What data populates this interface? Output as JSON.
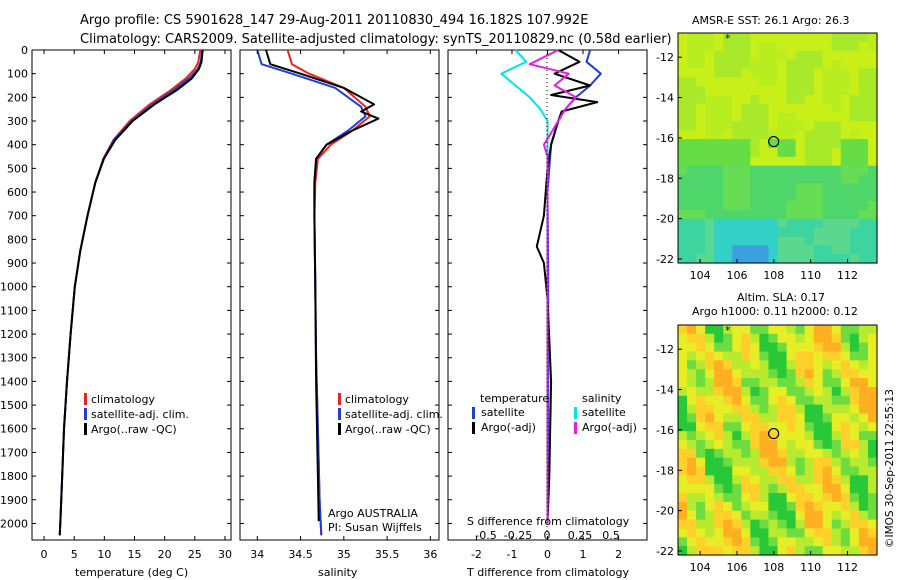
{
  "title": {
    "line1": "Argo profile: CS 5901628_147 29-Aug-2011 20110830_494 16.182S 107.992E",
    "line2": "Climatology: CARS2009. Satellite-adjusted climatology: synTS_20110829.nc (0.58d earlier)"
  },
  "colors": {
    "climatology": "#e8261b",
    "satellite": "#1f3fd6",
    "argo": "#000000",
    "sat_salinity": "#00e5e5",
    "argo_salinity": "#e51ee5"
  },
  "depth_ticks": [
    "0",
    "100",
    "200",
    "300",
    "400",
    "500",
    "600",
    "700",
    "800",
    "900",
    "1000",
    "1100",
    "1200",
    "1300",
    "1400",
    "1500",
    "1600",
    "1700",
    "1800",
    "1900",
    "2000"
  ],
  "panels": {
    "temperature": {
      "xlabel": "temperature (deg C)",
      "xticks": [
        "0",
        "5",
        "10",
        "15",
        "20",
        "25",
        "30"
      ],
      "legend": [
        "climatology",
        "satellite-adj. clim.",
        "Argo(..raw -QC)"
      ]
    },
    "salinity": {
      "xlabel": "salinity",
      "xticks": [
        "34",
        "34.5",
        "35",
        "35.5",
        "36"
      ],
      "legend": [
        "climatology",
        "satellite-adj. clim.",
        "Argo(..raw -QC)"
      ],
      "note1": "Argo AUSTRALIA",
      "note2": "PI: Susan Wijffels"
    },
    "difference": {
      "xlabel": "T difference from climatology",
      "top_axis_label": "S difference from climatology",
      "xticks": [
        "-2",
        "-1",
        "0",
        "1",
        "2"
      ],
      "s_ticks": [
        "-0.5",
        "-0.25",
        "0",
        "0.25",
        "0.5"
      ],
      "legend": {
        "temp_title": "temperature",
        "sal_title": "salinity",
        "temp_items": [
          "satellite",
          "Argo(-adj)"
        ],
        "sal_items": [
          "satellite",
          "Argo(-adj)"
        ]
      }
    }
  },
  "maps": {
    "sst": {
      "title": "AMSR-E SST: 26.1  Argo: 26.3",
      "yticks": [
        "-12",
        "-14",
        "-16",
        "-18",
        "-20",
        "-22"
      ],
      "xticks": [
        "104",
        "106",
        "108",
        "110",
        "112"
      ]
    },
    "sla": {
      "title1": "Altim. SLA: 0.17",
      "title2": "Argo h1000: 0.11 h2000: 0.12",
      "yticks": [
        "-12",
        "-14",
        "-16",
        "-18",
        "-20",
        "-22"
      ],
      "xticks": [
        "104",
        "106",
        "108",
        "110",
        "112"
      ]
    },
    "float_position": {
      "lon": 107.992,
      "lat": -16.182
    }
  },
  "credit": "©IMOS 30-Sep-2011 22:55:13",
  "chart_data": [
    {
      "type": "line",
      "name": "temperature",
      "xlabel": "temperature (deg C)",
      "ylabel": "",
      "xlim": [
        -2,
        31
      ],
      "ylim": [
        2070,
        0
      ],
      "xticks": [
        0,
        5,
        10,
        15,
        20,
        25,
        30
      ],
      "yticks": [
        0,
        100,
        200,
        300,
        400,
        500,
        600,
        700,
        800,
        900,
        1000,
        1100,
        1200,
        1300,
        1400,
        1500,
        1600,
        1700,
        1800,
        1900,
        2000
      ],
      "legend": "lower-left",
      "series": [
        {
          "name": "climatology",
          "color": "#e8261b",
          "x": [
            25.9,
            25.6,
            25.0,
            23.5,
            21.0,
            17.5,
            14.2,
            11.5,
            9.8,
            8.5,
            7.2,
            6.0,
            5.1,
            4.4,
            3.8,
            3.3,
            3.0,
            2.7,
            2.6
          ],
          "y": [
            0,
            50,
            80,
            120,
            170,
            230,
            300,
            380,
            460,
            560,
            700,
            850,
            1000,
            1200,
            1400,
            1600,
            1800,
            2000,
            2050
          ]
        },
        {
          "name": "satellite-adj. clim.",
          "color": "#1f3fd6",
          "x": [
            26.2,
            26.0,
            25.5,
            24.0,
            21.5,
            18.0,
            14.5,
            11.6,
            9.9,
            8.5,
            7.2,
            6.0,
            5.1,
            4.4,
            3.8,
            3.3,
            3.0,
            2.7,
            2.6
          ],
          "y": [
            0,
            50,
            80,
            120,
            170,
            230,
            300,
            380,
            460,
            560,
            700,
            850,
            1000,
            1200,
            1400,
            1600,
            1800,
            2000,
            2050
          ]
        },
        {
          "name": "Argo(..raw -QC)",
          "color": "#000000",
          "x": [
            26.3,
            26.1,
            25.7,
            24.5,
            22.0,
            18.3,
            14.7,
            11.8,
            9.9,
            8.5,
            7.2,
            6.0,
            5.1,
            4.4,
            3.8,
            3.3,
            3.0,
            2.7,
            2.6
          ],
          "y": [
            0,
            50,
            80,
            120,
            170,
            230,
            300,
            380,
            460,
            560,
            700,
            850,
            1000,
            1200,
            1400,
            1600,
            1800,
            2000,
            2050
          ]
        }
      ]
    },
    {
      "type": "line",
      "name": "salinity",
      "xlabel": "salinity",
      "ylabel": "",
      "xlim": [
        33.8,
        36.1
      ],
      "ylim": [
        2070,
        0
      ],
      "xticks": [
        34,
        34.5,
        35,
        35.5,
        36
      ],
      "legend": "lower-left",
      "series": [
        {
          "name": "climatology",
          "color": "#e8261b",
          "x": [
            34.35,
            34.4,
            34.6,
            35.0,
            35.25,
            35.3,
            35.1,
            34.85,
            34.7,
            34.67,
            34.66,
            34.67,
            34.68,
            34.7,
            34.72,
            34.74
          ],
          "y": [
            0,
            60,
            100,
            160,
            240,
            280,
            340,
            400,
            460,
            560,
            700,
            1000,
            1300,
            1600,
            1900,
            2050
          ]
        },
        {
          "name": "satellite-adj. clim.",
          "color": "#1f3fd6",
          "x": [
            34.0,
            34.05,
            34.4,
            34.9,
            35.2,
            35.25,
            35.05,
            34.8,
            34.68,
            34.66,
            34.66,
            34.67,
            34.68,
            34.7,
            34.72,
            34.74
          ],
          "y": [
            0,
            60,
            100,
            160,
            240,
            280,
            340,
            400,
            460,
            560,
            700,
            1000,
            1300,
            1600,
            1900,
            2050
          ]
        },
        {
          "name": "Argo(..raw -QC)",
          "color": "#000000",
          "x": [
            34.1,
            34.15,
            34.5,
            35.0,
            35.35,
            35.2,
            35.4,
            35.1,
            34.8,
            34.68,
            34.66,
            34.66,
            34.67,
            34.68,
            34.7,
            34.71
          ],
          "y": [
            0,
            60,
            100,
            160,
            230,
            260,
            290,
            340,
            400,
            460,
            560,
            700,
            1000,
            1400,
            1800,
            1990
          ]
        }
      ]
    },
    {
      "type": "line",
      "name": "difference from climatology",
      "xlabel": "T difference from climatology",
      "ylabel": "",
      "xlim": [
        -2.8,
        2.8
      ],
      "ylim": [
        2070,
        0
      ],
      "xticks": [
        -2,
        -1,
        0,
        1,
        2
      ],
      "top_axis": {
        "label": "S difference from climatology",
        "ticks": [
          -0.5,
          -0.25,
          0,
          0.25,
          0.5
        ]
      },
      "legend": "lower-center",
      "series": [
        {
          "name": "temperature satellite",
          "color": "#1f3fd6",
          "x": [
            1.2,
            1.1,
            1.5,
            1.2,
            0.8,
            0.5,
            0.3,
            0.2,
            0.1,
            0.05,
            0.0,
            0.02,
            0.02,
            0.02,
            0.0
          ],
          "y": [
            0,
            50,
            100,
            150,
            200,
            250,
            300,
            350,
            400,
            500,
            600,
            900,
            1300,
            1700,
            2000
          ]
        },
        {
          "name": "temperature Argo(-adj)",
          "color": "#000000",
          "x": [
            0.3,
            0.9,
            0.2,
            1.2,
            0.1,
            1.4,
            0.4,
            0.3,
            0.2,
            0.1,
            0.0,
            -0.1,
            -0.3,
            -0.1,
            0.0,
            0.1,
            0.05,
            0.0
          ],
          "y": [
            0,
            50,
            100,
            150,
            190,
            220,
            260,
            300,
            350,
            400,
            500,
            700,
            830,
            900,
            1050,
            1400,
            1800,
            2000
          ]
        },
        {
          "name": "salinity satellite",
          "color": "#00e5e5",
          "x": [
            -0.9,
            -0.6,
            -1.3,
            -0.9,
            -0.5,
            -0.2,
            0.0,
            0.0,
            0.0,
            0.0,
            0.0
          ],
          "y": [
            0,
            50,
            100,
            150,
            200,
            250,
            300,
            350,
            500,
            1000,
            2000
          ]
        },
        {
          "name": "salinity Argo(-adj)",
          "color": "#e51ee5",
          "x": [
            0.3,
            -0.5,
            0.6,
            0.2,
            0.8,
            0.5,
            0.3,
            0.1,
            -0.1,
            0.0,
            0.0,
            0.0,
            0.0
          ],
          "y": [
            0,
            60,
            100,
            150,
            200,
            250,
            300,
            350,
            400,
            450,
            500,
            1000,
            2000
          ]
        }
      ]
    }
  ]
}
